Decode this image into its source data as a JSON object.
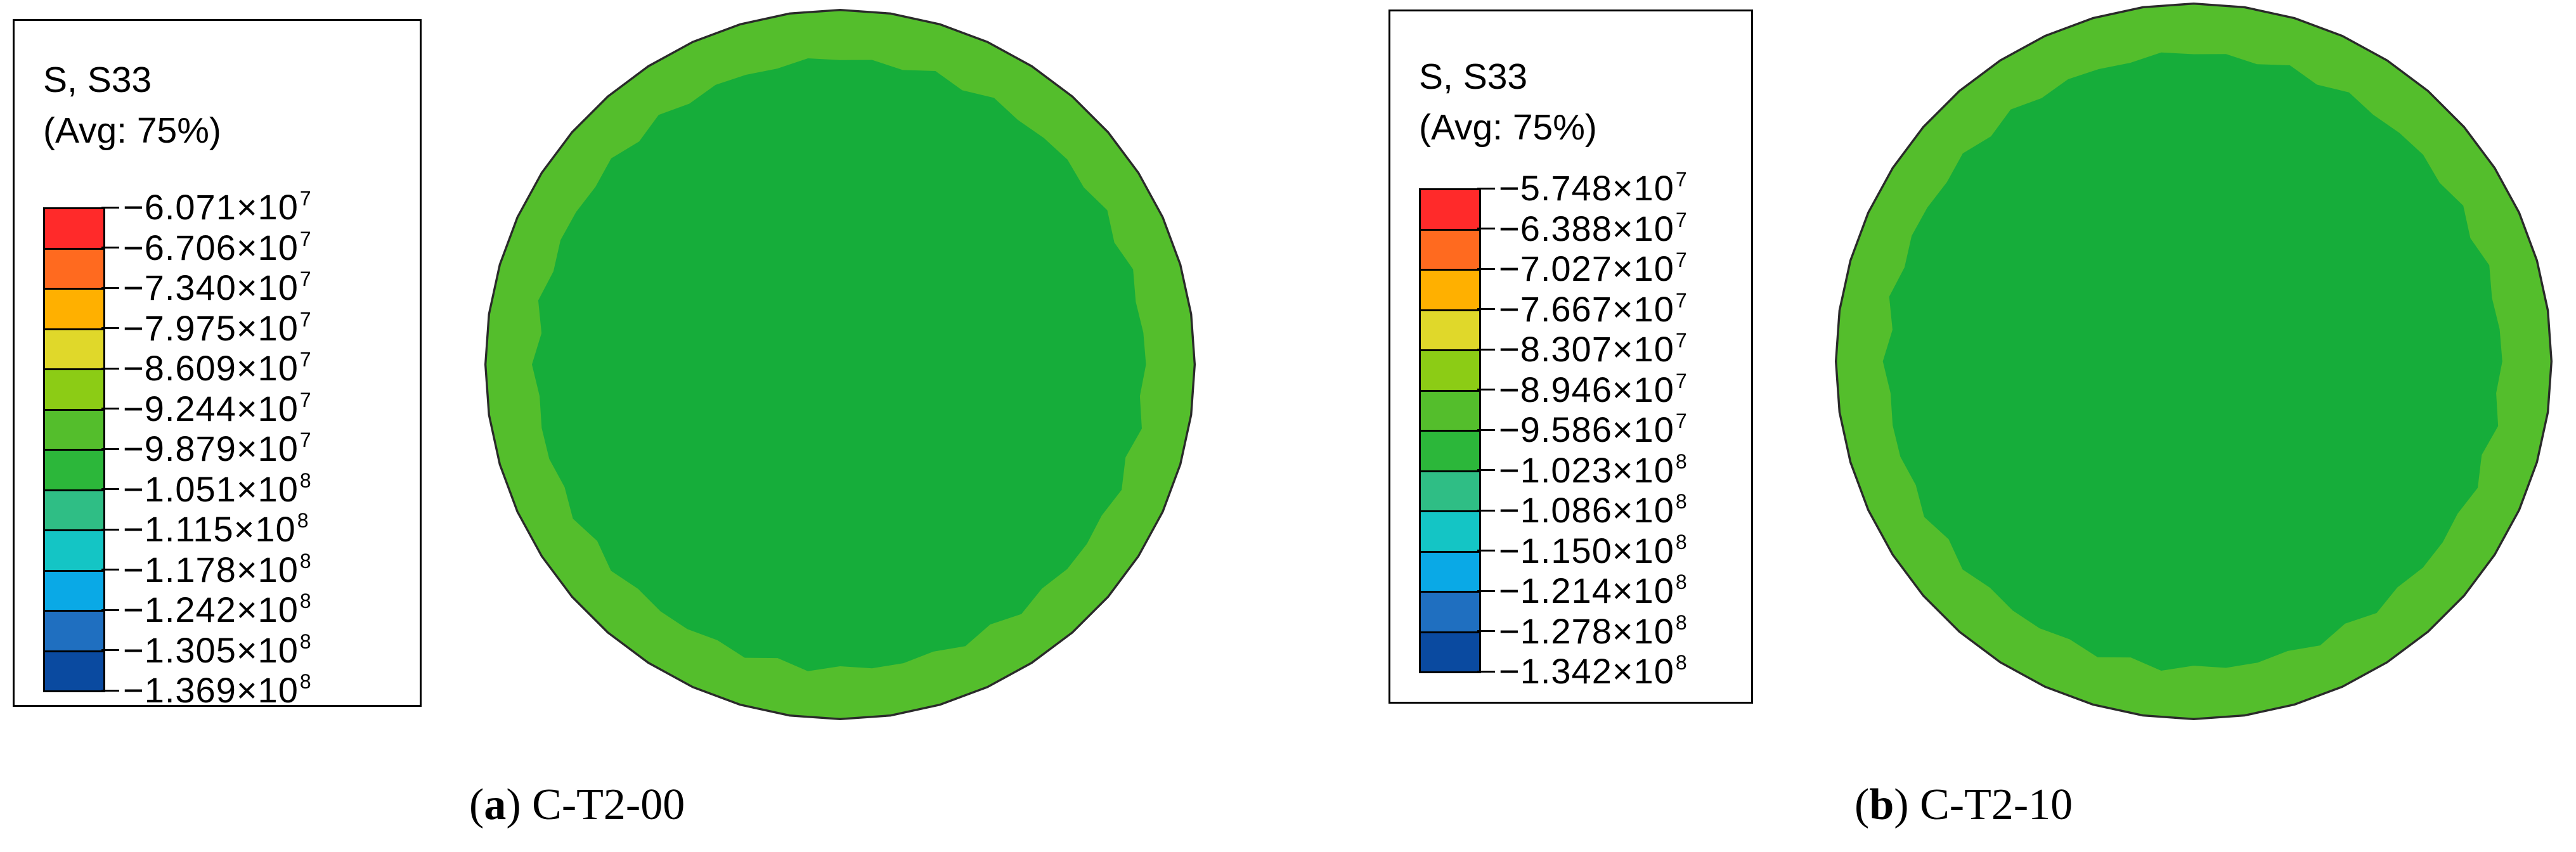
{
  "colors": {
    "outer_ring": "#54BE2C",
    "inner_core": "#16AD3A",
    "outline": "#2a2a2a",
    "scale_bands": [
      "#ff2a2a",
      "#ff6a1f",
      "#ffb000",
      "#e0d82a",
      "#8ccc15",
      "#54be2c",
      "#2cb73a",
      "#2fbe85",
      "#14c5c5",
      "#0aa9e6",
      "#1f6fc0",
      "#0a4aa0"
    ]
  },
  "panels": [
    {
      "legend": {
        "title_line1": "S, S33",
        "title_line2": "(Avg: 75%)",
        "ticks": [
          {
            "mantissa": "−6.071×10",
            "exp": "7"
          },
          {
            "mantissa": "−6.706×10",
            "exp": "7"
          },
          {
            "mantissa": "−7.340×10",
            "exp": "7"
          },
          {
            "mantissa": "−7.975×10",
            "exp": "7"
          },
          {
            "mantissa": "−8.609×10",
            "exp": "7"
          },
          {
            "mantissa": "−9.244×10",
            "exp": "7"
          },
          {
            "mantissa": "−9.879×10",
            "exp": "7"
          },
          {
            "mantissa": "−1.051×10",
            "exp": "8"
          },
          {
            "mantissa": "−1.115×10",
            "exp": "8"
          },
          {
            "mantissa": "−1.178×10",
            "exp": "8"
          },
          {
            "mantissa": "−1.242×10",
            "exp": "8"
          },
          {
            "mantissa": "−1.305×10",
            "exp": "8"
          },
          {
            "mantissa": "−1.369×10",
            "exp": "8"
          }
        ]
      },
      "caption": {
        "letter": "a",
        "label": "C-T2-00"
      }
    },
    {
      "legend": {
        "title_line1": "S, S33",
        "title_line2": "(Avg: 75%)",
        "ticks": [
          {
            "mantissa": "−5.748×10",
            "exp": "7"
          },
          {
            "mantissa": "−6.388×10",
            "exp": "7"
          },
          {
            "mantissa": "−7.027×10",
            "exp": "7"
          },
          {
            "mantissa": "−7.667×10",
            "exp": "7"
          },
          {
            "mantissa": "−8.307×10",
            "exp": "7"
          },
          {
            "mantissa": "−8.946×10",
            "exp": "7"
          },
          {
            "mantissa": "−9.586×10",
            "exp": "7"
          },
          {
            "mantissa": "−1.023×10",
            "exp": "8"
          },
          {
            "mantissa": "−1.086×10",
            "exp": "8"
          },
          {
            "mantissa": "−1.150×10",
            "exp": "8"
          },
          {
            "mantissa": "−1.214×10",
            "exp": "8"
          },
          {
            "mantissa": "−1.278×10",
            "exp": "8"
          },
          {
            "mantissa": "−1.342×10",
            "exp": "8"
          }
        ]
      },
      "caption": {
        "letter": "b",
        "label": "C-T2-10"
      }
    }
  ]
}
